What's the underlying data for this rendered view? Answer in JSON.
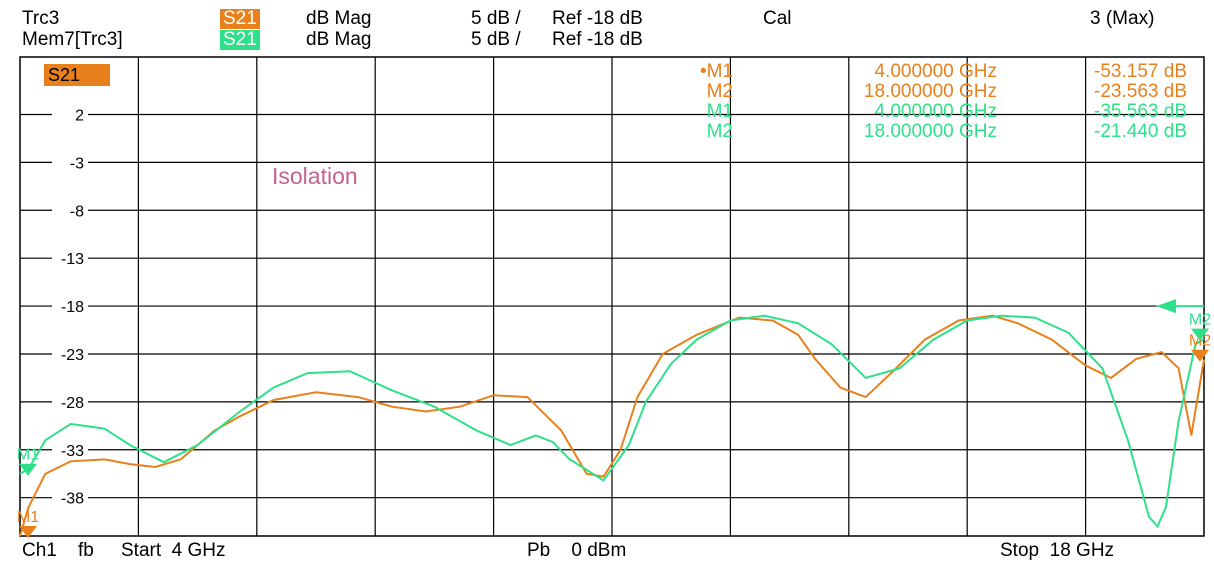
{
  "header": {
    "trace1": {
      "name": "Trc3",
      "param": "S21",
      "format": "dB Mag",
      "scale": "5 dB /",
      "ref": "Ref -18 dB",
      "color": "#E8801C"
    },
    "trace2": {
      "name": "Mem7[Trc3]",
      "param": "S21",
      "format": "dB Mag",
      "scale": "5 dB /",
      "ref": "Ref -18 dB",
      "color": "#2EE08A"
    },
    "cal": "Cal",
    "max": "3 (Max)"
  },
  "footer": {
    "channel": "Ch1",
    "sweep": "fb",
    "start": "Start  4 GHz",
    "power": "Pb    0 dBm",
    "stop": "Stop  18 GHz"
  },
  "chart_data": {
    "type": "line",
    "annotation": "Isolation",
    "param_label": "S21",
    "x_unit": "GHz",
    "x_range": [
      4,
      18
    ],
    "ylim": [
      -42,
      8
    ],
    "y_ticks": [
      2,
      -3,
      -8,
      -13,
      -18,
      -23,
      -28,
      -33,
      -38
    ],
    "grid": true,
    "series": [
      {
        "name": "Trc3",
        "color": "#E8801C",
        "x": [
          4.0,
          4.1,
          4.3,
          4.6,
          5.0,
          5.3,
          5.6,
          5.9,
          6.3,
          6.6,
          7.0,
          7.5,
          8.0,
          8.4,
          8.8,
          9.2,
          9.6,
          10.0,
          10.4,
          10.7,
          10.9,
          11.1,
          11.3,
          11.6,
          12.0,
          12.5,
          12.9,
          13.2,
          13.4,
          13.7,
          14.0,
          14.3,
          14.7,
          15.1,
          15.5,
          15.8,
          16.2,
          16.6,
          16.9,
          17.2,
          17.5,
          17.7,
          17.85,
          18.0
        ],
        "y": [
          -42.0,
          -39.0,
          -35.5,
          -34.2,
          -34.0,
          -34.5,
          -34.8,
          -34.0,
          -31.0,
          -29.5,
          -27.8,
          -27.0,
          -27.5,
          -28.5,
          -29.0,
          -28.5,
          -27.3,
          -27.5,
          -31.0,
          -35.5,
          -35.8,
          -33.0,
          -27.5,
          -23.0,
          -21.0,
          -19.2,
          -19.5,
          -21.0,
          -23.5,
          -26.5,
          -27.5,
          -25.0,
          -21.5,
          -19.5,
          -19.0,
          -19.8,
          -21.5,
          -24.2,
          -25.5,
          -23.5,
          -22.8,
          -24.5,
          -31.5,
          -23.6
        ],
        "markers": [
          {
            "label": "M1",
            "x": 4.0,
            "x_text": "4.000000 GHz",
            "value": "-53.157 dB",
            "active": true
          },
          {
            "label": "M2",
            "x": 18.0,
            "x_text": "18.000000 GHz",
            "value": "-23.563 dB"
          }
        ]
      },
      {
        "name": "Mem7[Trc3]",
        "color": "#2EE08A",
        "x": [
          4.0,
          4.1,
          4.3,
          4.6,
          5.0,
          5.3,
          5.7,
          6.1,
          6.6,
          7.0,
          7.4,
          7.9,
          8.4,
          8.9,
          9.4,
          9.8,
          10.1,
          10.3,
          10.5,
          10.9,
          11.2,
          11.4,
          11.7,
          12.0,
          12.4,
          12.8,
          13.2,
          13.6,
          14.0,
          14.4,
          14.8,
          15.2,
          15.6,
          16.0,
          16.4,
          16.8,
          17.1,
          17.35,
          17.45,
          17.55,
          17.7,
          17.9,
          18.0
        ],
        "y": [
          -35.5,
          -35.0,
          -32.0,
          -30.3,
          -30.8,
          -32.5,
          -34.3,
          -32.5,
          -29.0,
          -26.5,
          -25.0,
          -24.8,
          -26.8,
          -28.5,
          -31.0,
          -32.5,
          -31.5,
          -32.2,
          -34.0,
          -36.2,
          -32.5,
          -28.0,
          -24.0,
          -21.5,
          -19.5,
          -19.0,
          -19.8,
          -22.0,
          -25.5,
          -24.5,
          -21.5,
          -19.5,
          -19.0,
          -19.2,
          -20.8,
          -24.5,
          -32.0,
          -40.0,
          -41.0,
          -39.0,
          -30.0,
          -22.0,
          -21.4
        ],
        "markers": [
          {
            "label": "M1",
            "x": 4.0,
            "x_text": "4.000000 GHz",
            "value": "-35.563 dB"
          },
          {
            "label": "M2",
            "x": 18.0,
            "x_text": "18.000000 GHz",
            "value": "-21.440 dB"
          }
        ]
      }
    ]
  }
}
